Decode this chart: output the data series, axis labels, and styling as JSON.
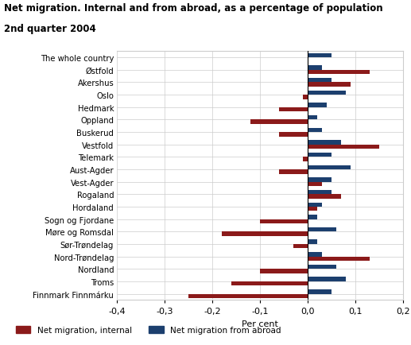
{
  "title_line1": "Net migration. Internal and from abroad, as a percentage of population",
  "title_line2": "2nd quarter 2004",
  "categories": [
    "The whole country",
    "Østfold",
    "Akershus",
    "Oslo",
    "Hedmark",
    "Oppland",
    "Buskerud",
    "Vestfold",
    "Telemark",
    "Aust-Agder",
    "Vest-Agder",
    "Rogaland",
    "Hordaland",
    "Sogn og Fjordane",
    "Møre og Romsdal",
    "Sør-Trøndelag",
    "Nord-Trøndelag",
    "Nordland",
    "Troms",
    "Finnmark Finnmárku"
  ],
  "internal": [
    0.0,
    0.13,
    0.09,
    -0.01,
    -0.06,
    -0.12,
    -0.06,
    0.15,
    -0.01,
    -0.06,
    0.03,
    0.07,
    0.02,
    -0.1,
    -0.18,
    -0.03,
    0.13,
    -0.1,
    -0.16,
    -0.25
  ],
  "abroad": [
    0.05,
    0.03,
    0.05,
    0.08,
    0.04,
    0.02,
    0.03,
    0.07,
    0.05,
    0.09,
    0.05,
    0.05,
    0.03,
    0.02,
    0.06,
    0.02,
    0.03,
    0.06,
    0.08,
    0.05
  ],
  "color_internal": "#8B1A1A",
  "color_abroad": "#1C3F6E",
  "xlabel": "Per cent",
  "xlim": [
    -0.4,
    0.2
  ],
  "xticks": [
    -0.4,
    -0.3,
    -0.2,
    -0.1,
    0.0,
    0.1,
    0.2
  ],
  "xtick_labels": [
    "-0,4",
    "-0,3",
    "-0,2",
    "-0,1",
    "0,0",
    "0,1",
    "0,2"
  ],
  "legend_internal": "Net migration, internal",
  "legend_abroad": "Net migration from abroad",
  "bar_height": 0.35
}
